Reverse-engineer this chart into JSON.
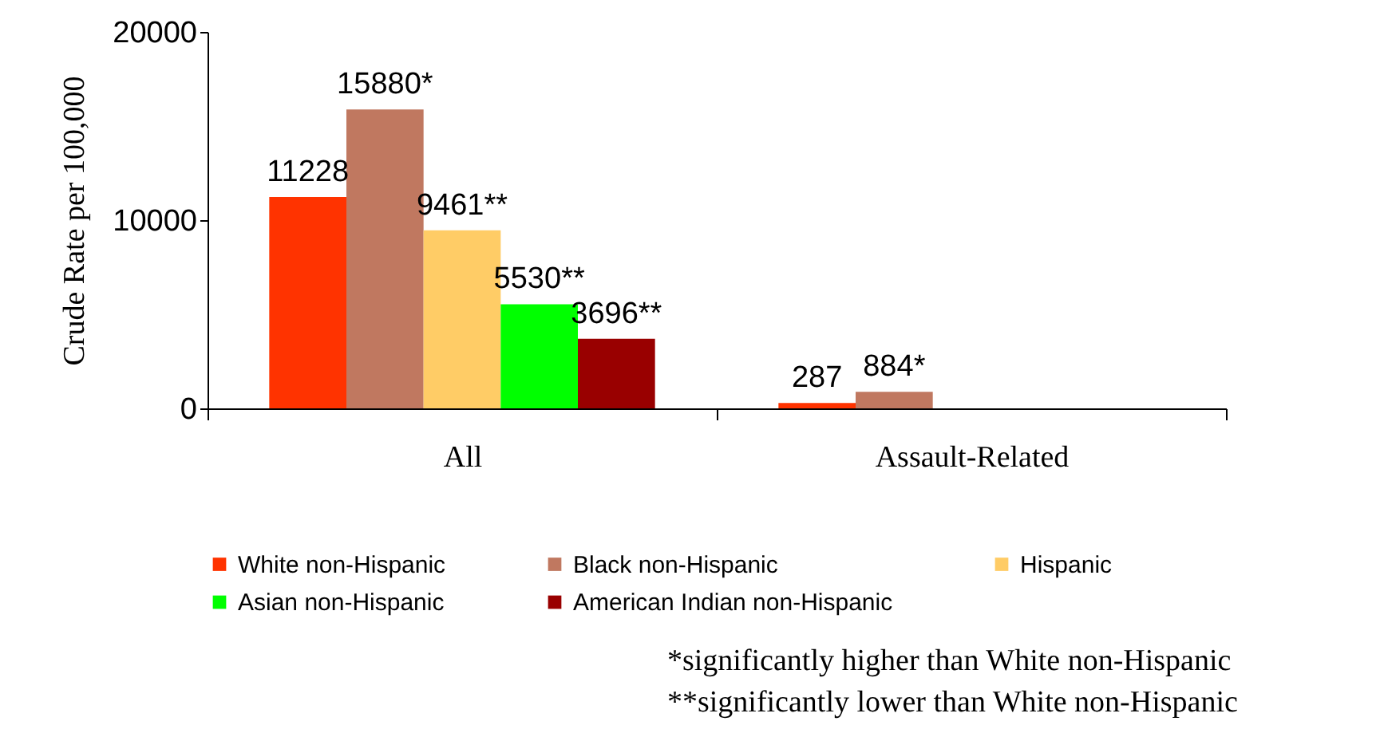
{
  "chart_data": {
    "type": "bar",
    "ylabel": "Crude Rate per 100,000",
    "categories": [
      "All",
      "Assault-Related"
    ],
    "series": [
      {
        "name": "White non-Hispanic",
        "color": "#ff3300",
        "values": [
          11228,
          287
        ],
        "value_labels": [
          "11228",
          "287"
        ]
      },
      {
        "name": "Black non-Hispanic",
        "color": "#c07860",
        "values": [
          15880,
          884
        ],
        "value_labels": [
          "15880*",
          "884*"
        ]
      },
      {
        "name": "Hispanic",
        "color": "#ffcc66",
        "values": [
          9461,
          null
        ],
        "value_labels": [
          "9461**",
          null
        ]
      },
      {
        "name": "Asian non-Hispanic",
        "color": "#00ff00",
        "values": [
          5530,
          null
        ],
        "value_labels": [
          "5530**",
          null
        ]
      },
      {
        "name": "American Indian non-Hispanic",
        "color": "#990000",
        "values": [
          3696,
          null
        ],
        "value_labels": [
          "3696**",
          null
        ]
      }
    ],
    "ylim": [
      0,
      20000
    ],
    "yticks": [
      0,
      10000,
      20000
    ],
    "grid": false,
    "legend": "bottom",
    "annotations": [
      "*significantly higher than White non-Hispanic",
      "**significantly lower than White non-Hispanic"
    ]
  }
}
